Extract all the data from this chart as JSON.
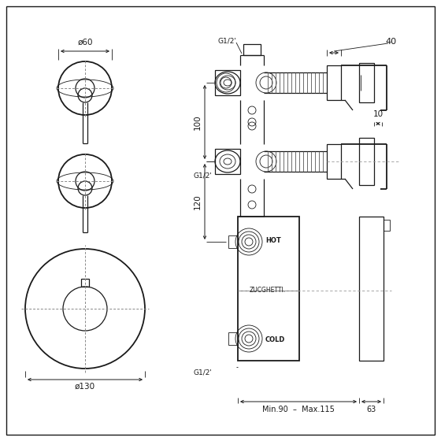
{
  "bg_color": "#ffffff",
  "line_color": "#1a1a1a",
  "fig_width": 5.6,
  "fig_height": 5.6,
  "dpi": 100,
  "annotations": {
    "phi60": "ø60",
    "phi130": "ø130",
    "dim40": "40",
    "dim100": "100",
    "dim120": "120",
    "dim10": "10",
    "dim63": "63",
    "g12_top": "G1/2'",
    "g12_mid": "G1/2'",
    "g12_bot": "G1/2'",
    "hot": "HOT",
    "cold": "COLD",
    "zucchetti": "ZUCGHETTI.",
    "minmax": "Min.90  –  Max.115"
  }
}
